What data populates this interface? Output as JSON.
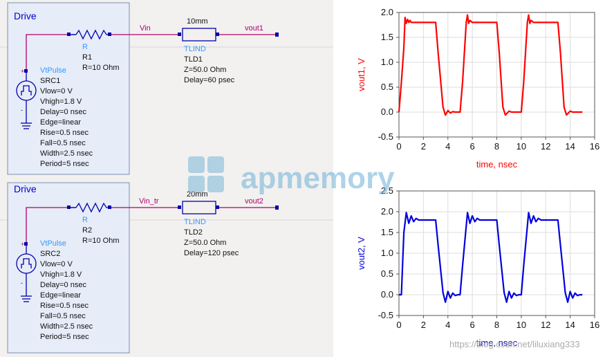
{
  "watermark": {
    "brand": "apmemory",
    "url": "https://blog.csdn.net/liluxiang333"
  },
  "circuits": [
    {
      "drive_label": "Drive",
      "node_in": "Vin",
      "node_out": "vout1",
      "resistor": {
        "type": "R",
        "name": "R1",
        "value": "R=10 Ohm"
      },
      "source": {
        "type": "VtPulse",
        "name": "SRC1",
        "params": [
          "Vlow=0 V",
          "Vhigh=1.8 V",
          "Delay=0 nsec",
          "Edge=linear",
          "Rise=0.5 nsec",
          "Fall=0.5 nsec",
          "Width=2.5 nsec",
          "Period=5 nsec"
        ]
      },
      "tline": {
        "length": "10mm",
        "type": "TLIND",
        "name": "TLD1",
        "params": [
          "Z=50.0 Ohm",
          "Delay=60 psec"
        ]
      }
    },
    {
      "drive_label": "Drive",
      "node_in": "Vin_tr",
      "node_out": "vout2",
      "resistor": {
        "type": "R",
        "name": "R2",
        "value": "R=10 Ohm"
      },
      "source": {
        "type": "VtPulse",
        "name": "SRC2",
        "params": [
          "Vlow=0 V",
          "Vhigh=1.8 V",
          "Delay=0 nsec",
          "Edge=linear",
          "Rise=0.5 nsec",
          "Fall=0.5 nsec",
          "Width=2.5 nsec",
          "Period=5 nsec"
        ]
      },
      "tline": {
        "length": "20mm",
        "type": "TLIND",
        "name": "TLD2",
        "params": [
          "Z=50.0 Ohm",
          "Delay=120 psec"
        ]
      }
    }
  ],
  "chart_data": [
    {
      "type": "line",
      "xlabel": "time, nsec",
      "ylabel": "vout1, V",
      "xlim": [
        0,
        16
      ],
      "ylim": [
        -0.5,
        2.0
      ],
      "xticks": [
        "0",
        "2",
        "4",
        "6",
        "8",
        "10",
        "12",
        "14",
        "16"
      ],
      "yticks": [
        "-0.5",
        "0.0",
        "0.5",
        "1.0",
        "1.5",
        "2.0"
      ],
      "grid": true,
      "color": "#ff0000",
      "series": [
        {
          "x": [
            0,
            0.2,
            0.4,
            0.5,
            0.6,
            0.7,
            0.8,
            0.9,
            1.0,
            1.2,
            3.0,
            3.2,
            3.6,
            3.8,
            4.0,
            4.2,
            4.4,
            4.6,
            4.8,
            5.0,
            5.2,
            5.5,
            5.6,
            5.7,
            5.8,
            6.0,
            8.0,
            8.2,
            8.5,
            8.7,
            9.0,
            9.2,
            9.5,
            10.0,
            10.2,
            10.5,
            10.6,
            10.7,
            10.8,
            11.0,
            13.0,
            13.2,
            13.5,
            13.7,
            14.0,
            14.2,
            14.5,
            15.0
          ],
          "y": [
            0,
            0.6,
            1.3,
            1.9,
            1.78,
            1.86,
            1.8,
            1.84,
            1.8,
            1.8,
            1.8,
            1.2,
            0.1,
            -0.06,
            0.03,
            -0.02,
            0.01,
            0,
            0,
            0,
            0.6,
            1.8,
            1.95,
            1.78,
            1.84,
            1.8,
            1.8,
            1.2,
            0.1,
            -0.06,
            0.02,
            0,
            0,
            0,
            0.6,
            1.8,
            1.95,
            1.78,
            1.84,
            1.8,
            1.8,
            1.2,
            0.1,
            -0.06,
            0.02,
            0,
            0,
            0
          ]
        }
      ]
    },
    {
      "type": "line",
      "xlabel": "time, nsec",
      "ylabel": "vout2, V",
      "xlim": [
        0,
        16
      ],
      "ylim": [
        -0.5,
        2.5
      ],
      "xticks": [
        "0",
        "2",
        "4",
        "6",
        "8",
        "10",
        "12",
        "14",
        "16"
      ],
      "yticks": [
        "-0.5",
        "0.0",
        "0.5",
        "1.0",
        "1.5",
        "2.0",
        "2.5"
      ],
      "grid": true,
      "color": "#0000dd",
      "series": [
        {
          "x": [
            0,
            0.2,
            0.4,
            0.6,
            0.8,
            1.0,
            1.2,
            1.4,
            1.6,
            1.8,
            2.0,
            3.0,
            3.2,
            3.6,
            3.8,
            4.0,
            4.2,
            4.4,
            4.6,
            4.8,
            5.0,
            5.2,
            5.6,
            5.8,
            6.0,
            6.2,
            6.4,
            6.6,
            6.8,
            7.0,
            8.0,
            8.2,
            8.6,
            8.8,
            9.0,
            9.2,
            9.4,
            9.6,
            9.8,
            10.0,
            10.2,
            10.6,
            10.8,
            11.0,
            11.2,
            11.4,
            11.6,
            11.8,
            12.0,
            13.0,
            13.2,
            13.6,
            13.8,
            14.0,
            14.2,
            14.4,
            14.6,
            14.8,
            15.0
          ],
          "y": [
            0,
            0.0,
            1.5,
            1.98,
            1.72,
            1.9,
            1.76,
            1.84,
            1.8,
            1.8,
            1.8,
            1.8,
            1.2,
            0.05,
            -0.18,
            0.08,
            -0.08,
            0.04,
            -0.02,
            0,
            0,
            0.7,
            1.98,
            1.72,
            1.9,
            1.76,
            1.84,
            1.8,
            1.8,
            1.8,
            1.8,
            1.2,
            0.05,
            -0.18,
            0.08,
            -0.08,
            0.04,
            -0.02,
            0,
            0,
            0.7,
            1.98,
            1.72,
            1.9,
            1.76,
            1.84,
            1.8,
            1.8,
            1.8,
            1.8,
            1.2,
            0.05,
            -0.18,
            0.08,
            -0.08,
            0.04,
            -0.02,
            0,
            0
          ]
        }
      ]
    }
  ]
}
